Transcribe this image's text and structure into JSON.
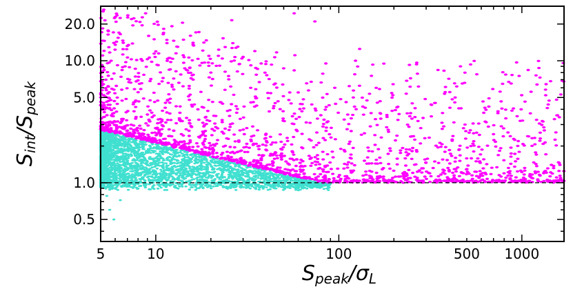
{
  "chart_data": {
    "type": "scatter",
    "title": "",
    "xlabel": "Speak/σL",
    "ylabel": "Sint/Speak",
    "xscale": "log",
    "yscale": "log",
    "xlim": [
      5,
      1700
    ],
    "ylim": [
      0.33,
      28
    ],
    "x_ticks": [
      5,
      10,
      100,
      500,
      1000
    ],
    "x_tick_labels": [
      "5",
      "10",
      "100",
      "500",
      "1000"
    ],
    "y_ticks": [
      0.5,
      1.0,
      5.0,
      10.0,
      20.0
    ],
    "y_tick_labels": [
      "0.5",
      "1.0",
      "5.0",
      "10.0",
      "20.0"
    ],
    "reference_line": {
      "y": 1.0,
      "style": "dashed",
      "color": "#000000"
    },
    "series": [
      {
        "color": "#40e0d0",
        "region": "dense band below an envelope falling from about 2.7 at x=5 to 1.0 near x=80, plus scatter down to about 0.85"
      },
      {
        "color": "#ff00ff",
        "region": "points above the envelope, up to about 25"
      }
    ],
    "sample_points_magenta": [
      [
        8.8,
        24.5
      ],
      [
        57,
        24.5
      ],
      [
        26,
        21.5
      ],
      [
        74,
        21
      ],
      [
        14,
        20.5
      ],
      [
        7.5,
        19.5
      ],
      [
        5.9,
        14
      ],
      [
        6.3,
        17
      ],
      [
        9.8,
        15
      ],
      [
        130,
        12.5
      ],
      [
        5.7,
        10
      ],
      [
        6.8,
        9
      ],
      [
        9.5,
        9.8
      ],
      [
        12,
        8.5
      ],
      [
        16,
        7
      ],
      [
        20,
        8
      ],
      [
        25,
        7.5
      ],
      [
        33,
        6
      ],
      [
        45,
        6.5
      ],
      [
        60,
        5.5
      ],
      [
        85,
        9.5
      ],
      [
        95,
        6
      ],
      [
        120,
        5
      ],
      [
        160,
        6
      ],
      [
        210,
        4.2
      ],
      [
        320,
        3.5
      ],
      [
        480,
        2.8
      ],
      [
        700,
        2.5
      ],
      [
        950,
        2
      ],
      [
        1200,
        1.7
      ],
      [
        1450,
        1.4
      ],
      [
        1600,
        1.45
      ]
    ],
    "grid": false,
    "legend": "none"
  }
}
